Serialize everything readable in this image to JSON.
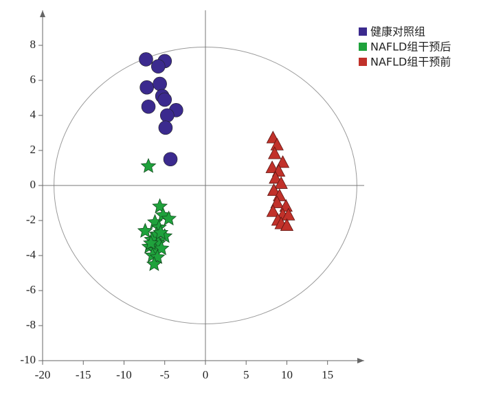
{
  "chart_data": {
    "type": "scatter",
    "xlim": [
      -20,
      19.5
    ],
    "ylim": [
      -10,
      10
    ],
    "xticks": [
      -20,
      -15,
      -10,
      -5,
      0,
      5,
      10,
      15
    ],
    "yticks": [
      -10,
      -8,
      -6,
      -4,
      -2,
      0,
      2,
      4,
      6,
      8
    ],
    "ellipse": {
      "rx": 18.6,
      "ry": 7.9
    },
    "legend": "top-right",
    "series": [
      {
        "name": "健康对照组",
        "color": "#3b2a8e",
        "marker": "circle",
        "x": [
          -7.3,
          -5.0,
          -5.8,
          -7.2,
          -5.6,
          -5.3,
          -5.0,
          -7.0,
          -3.6,
          -4.7,
          -4.9,
          -4.3
        ],
        "y": [
          7.2,
          7.1,
          6.8,
          5.6,
          5.8,
          5.1,
          4.9,
          4.5,
          4.3,
          4.0,
          3.3,
          1.5
        ]
      },
      {
        "name": "NAFLD组干预后",
        "color": "#1fa23c",
        "marker": "star",
        "x": [
          -7.0,
          -5.6,
          -5.2,
          -4.5,
          -6.2,
          -5.7,
          -7.4,
          -6.0,
          -5.0,
          -6.6,
          -5.8,
          -6.9,
          -6.2,
          -5.4,
          -6.5,
          -5.9,
          -6.3,
          -6.7,
          -5.5
        ],
        "y": [
          1.1,
          -1.2,
          -1.7,
          -1.9,
          -2.1,
          -2.4,
          -2.6,
          -2.8,
          -2.9,
          -3.1,
          -3.3,
          -3.5,
          -3.7,
          -3.6,
          -4.0,
          -4.1,
          -4.5,
          -3.3,
          -2.7
        ]
      },
      {
        "name": "NAFLD组干预前",
        "color": "#c1312a",
        "marker": "triangle",
        "x": [
          8.3,
          8.8,
          8.5,
          9.5,
          8.2,
          9.0,
          8.6,
          9.3,
          8.4,
          9.1,
          8.8,
          9.9,
          8.3,
          9.5,
          10.2,
          8.9,
          9.3,
          10.0
        ],
        "y": [
          2.7,
          2.3,
          1.8,
          1.3,
          1.0,
          0.8,
          0.4,
          0.1,
          -0.3,
          -0.6,
          -1.0,
          -1.2,
          -1.5,
          -1.7,
          -1.7,
          -2.0,
          -2.2,
          -2.3
        ]
      }
    ]
  }
}
